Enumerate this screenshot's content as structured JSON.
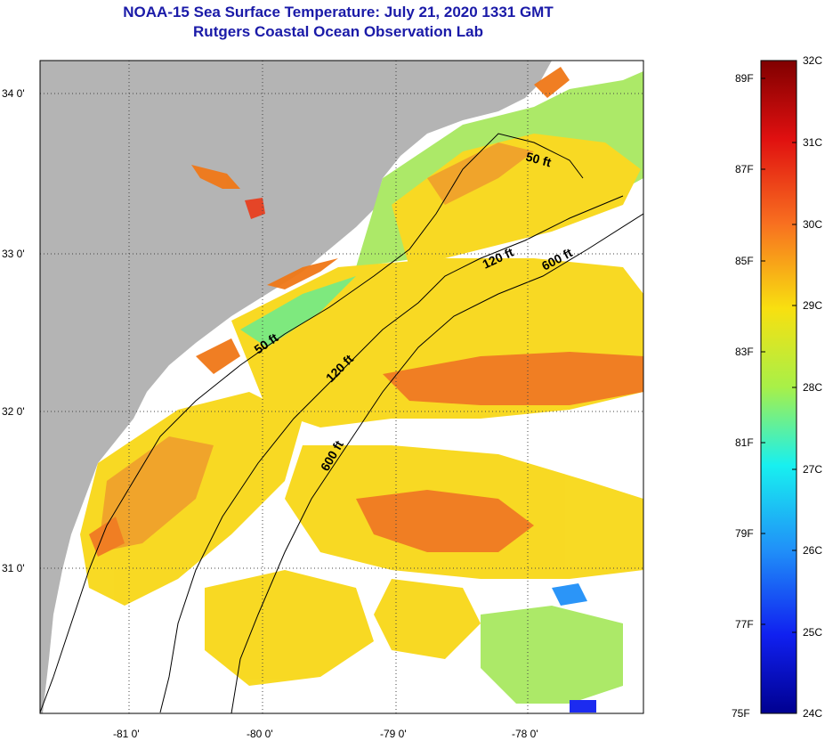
{
  "title": "NOAA-15 Sea Surface Temperature:  July 21, 2020 1331 GMT",
  "subtitle": "Rutgers Coastal Ocean Observation Lab",
  "map": {
    "lat_labels": [
      "34 0'",
      "33 0'",
      "32 0'",
      "31 0'"
    ],
    "lon_labels": [
      "-81 0'",
      "-80 0'",
      "-79 0'",
      "-78 0'"
    ],
    "contours": [
      "50 ft",
      "120 ft",
      "600 ft",
      "50 ft",
      "120 ft",
      "600 ft"
    ],
    "colors": {
      "land": "#b4b4b4",
      "cloud": "#ffffff",
      "warm": "#f07818",
      "mid": "#f8d818",
      "cool": "#78e878"
    }
  },
  "colorbar": {
    "fahrenheit": [
      "89F",
      "87F",
      "85F",
      "83F",
      "81F",
      "79F",
      "77F",
      "75F"
    ],
    "celsius": [
      "32C",
      "31C",
      "30C",
      "29C",
      "28C",
      "27C",
      "26C",
      "25C",
      "24C"
    ]
  }
}
